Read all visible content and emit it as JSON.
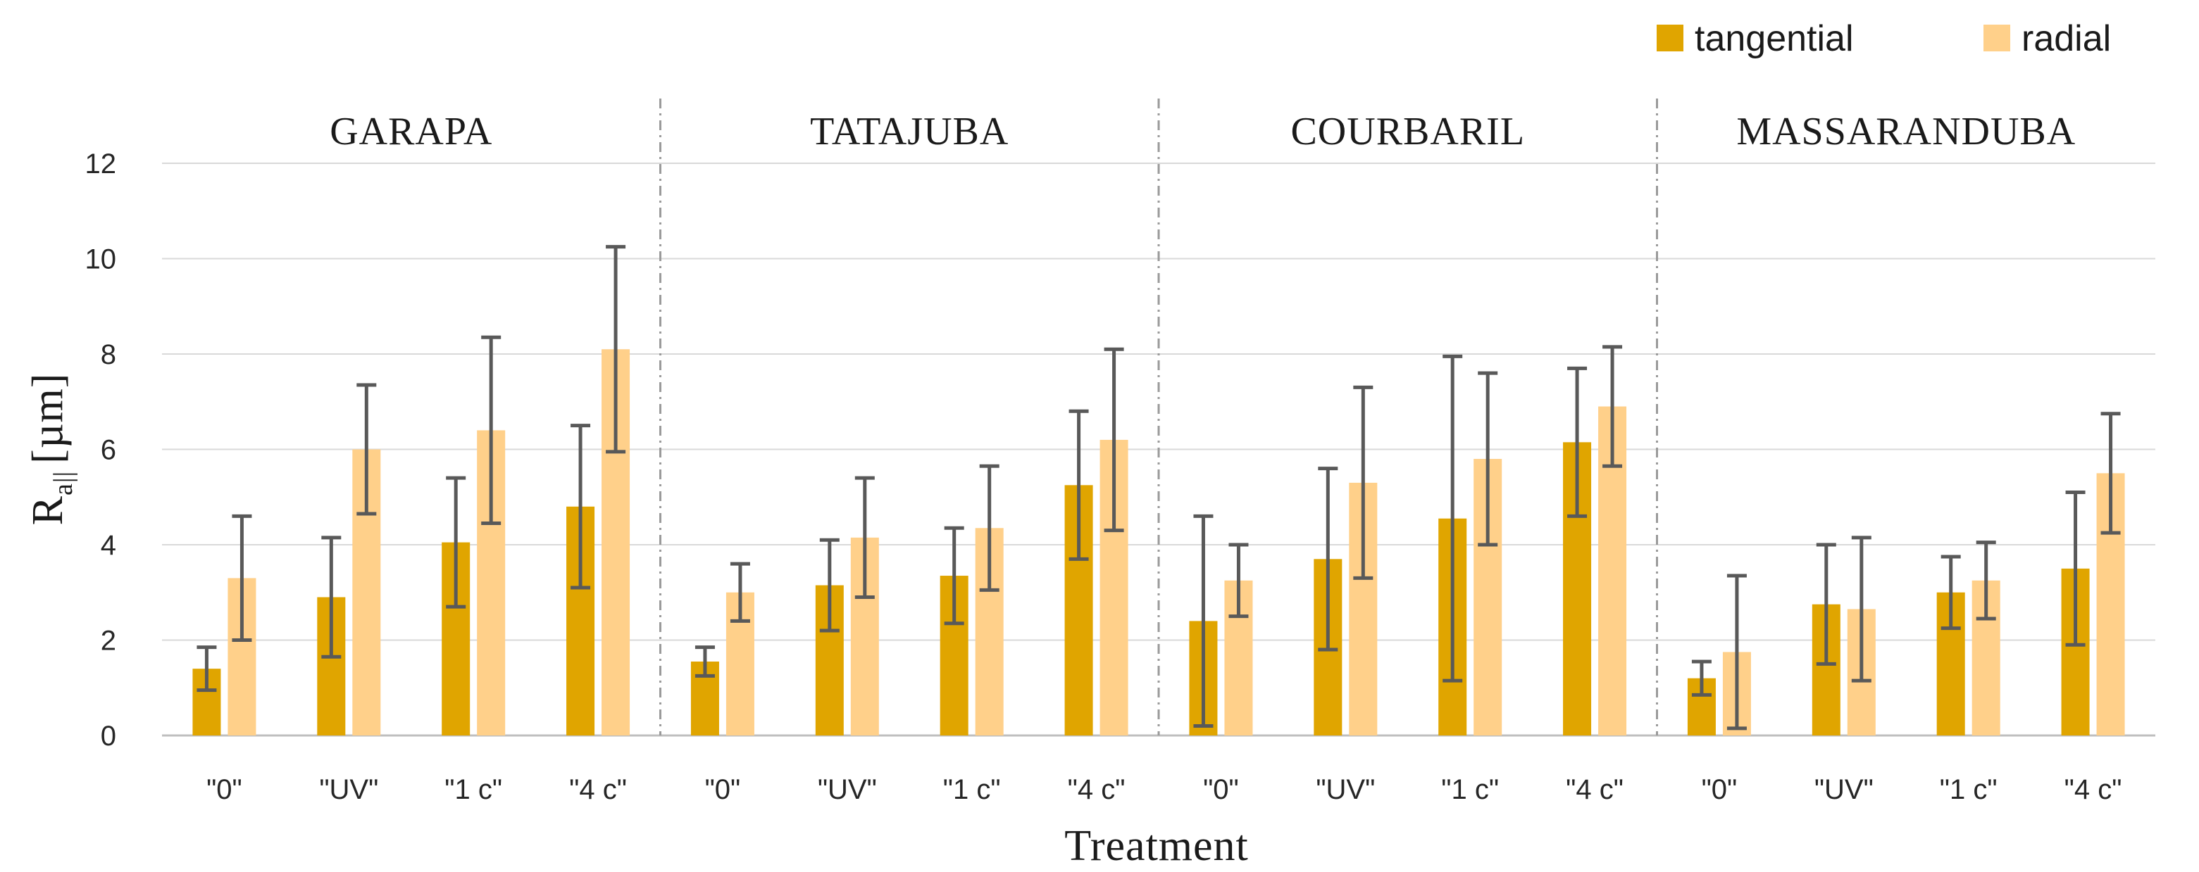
{
  "chart_data": {
    "type": "bar",
    "title": "",
    "xlabel": "Treatment",
    "ylabel": "R",
    "ylabel_subscript": "a||",
    "ylabel_unit": "[µm]",
    "ylim": [
      0,
      12
    ],
    "yticks": [
      0,
      2,
      4,
      6,
      8,
      10,
      12
    ],
    "grid": true,
    "legend_position": "top-right",
    "groups": [
      "GARAPA",
      "TATAJUBA",
      "COURBARIL",
      "MASSARANDUBA"
    ],
    "categories": [
      "\"0\"",
      "\"UV\"",
      "\"1 c\"",
      "\"4 c\""
    ],
    "series": [
      {
        "name": "tangential",
        "color": "#E0A500",
        "values": [
          [
            1.4,
            2.9,
            4.05,
            4.8
          ],
          [
            1.55,
            3.15,
            3.35,
            5.25
          ],
          [
            2.4,
            3.7,
            4.55,
            6.15
          ],
          [
            1.2,
            2.75,
            3.0,
            3.5
          ]
        ],
        "errors": [
          [
            0.45,
            1.25,
            1.35,
            1.7
          ],
          [
            0.3,
            0.95,
            1.0,
            1.55
          ],
          [
            2.2,
            1.9,
            3.4,
            1.55
          ],
          [
            0.35,
            1.25,
            0.75,
            1.6
          ]
        ]
      },
      {
        "name": "radial",
        "color": "#FFD08A",
        "values": [
          [
            3.3,
            6.0,
            6.4,
            8.1
          ],
          [
            3.0,
            4.15,
            4.35,
            6.2
          ],
          [
            3.25,
            5.3,
            5.8,
            6.9
          ],
          [
            1.75,
            2.65,
            3.25,
            5.5
          ]
        ],
        "errors": [
          [
            1.3,
            1.35,
            1.95,
            2.15
          ],
          [
            0.6,
            1.25,
            1.3,
            1.9
          ],
          [
            0.75,
            2.0,
            1.8,
            1.25
          ],
          [
            1.6,
            1.5,
            0.8,
            1.25
          ]
        ]
      }
    ]
  }
}
